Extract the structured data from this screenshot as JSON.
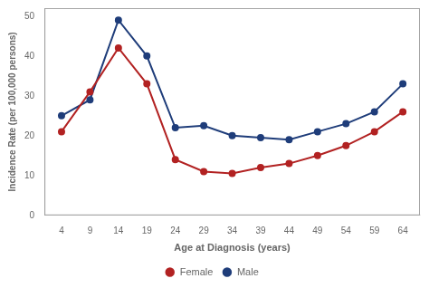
{
  "chart_data": {
    "type": "line",
    "x": [
      4,
      9,
      14,
      19,
      24,
      29,
      34,
      39,
      44,
      49,
      54,
      59,
      64
    ],
    "series": [
      {
        "name": "Female",
        "color": "#b22222",
        "marker": "circle",
        "values": [
          21,
          31,
          42,
          33,
          14,
          11,
          10.5,
          12,
          13,
          15,
          17.5,
          21,
          26
        ]
      },
      {
        "name": "Male",
        "color": "#1f3d7a",
        "marker": "circle",
        "values": [
          25,
          29,
          49,
          40,
          22,
          22.5,
          20,
          19.5,
          19,
          21,
          23,
          26,
          33
        ]
      }
    ],
    "xlabel": "Age at Diagnosis (years)",
    "ylabel": "Incidence Rate (per 100,000 persons)",
    "xlim": [
      1,
      67
    ],
    "xticks": [
      4,
      9,
      14,
      19,
      24,
      29,
      34,
      39,
      44,
      49,
      54,
      59,
      64
    ],
    "ylim": [
      0,
      52
    ],
    "yticks": [
      0,
      10,
      20,
      30,
      40,
      50
    ],
    "grid": false,
    "legend": "bottom"
  }
}
